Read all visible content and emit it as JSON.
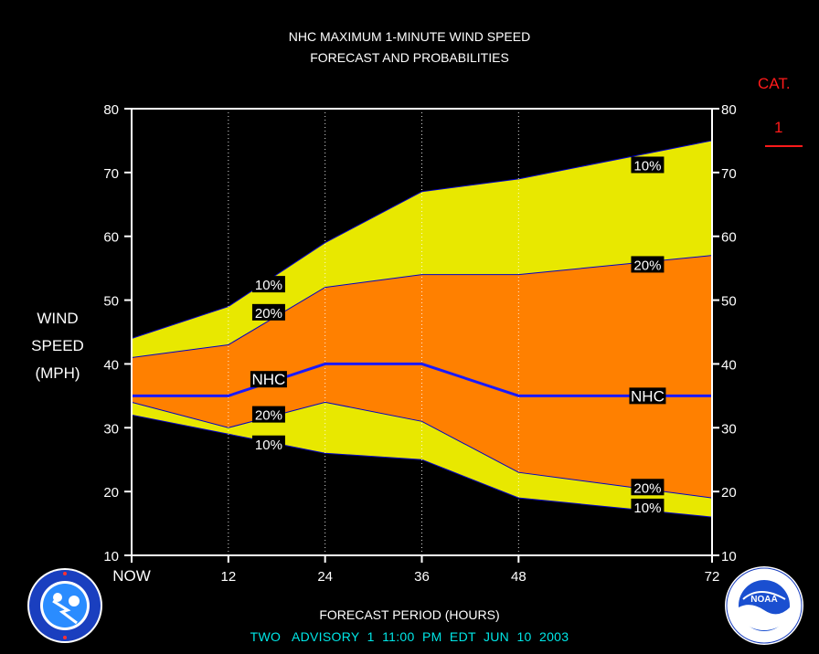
{
  "header": {
    "title_line1": "NHC MAXIMUM 1-MINUTE WIND SPEED",
    "title_line2": "FORECAST AND PROBABILITIES"
  },
  "category": {
    "label": "CAT.",
    "value": "1"
  },
  "y_axis_title": [
    "WIND",
    "SPEED",
    "(MPH)"
  ],
  "x_axis_title": "FORECAST PERIOD (HOURS)",
  "advisory": "TWO   ADVISORY  1  11:00  PM  EDT  JUN  10  2003",
  "logos": {
    "left": "nws-logo",
    "right": "noaa-logo"
  },
  "colors": {
    "background": "#000000",
    "outer_band": "#e8e800",
    "inner_band": "#ff8000",
    "nhc_line": "#1a1aff",
    "category_red": "#ff1a1a",
    "advisory_cyan": "#00e6e6"
  },
  "chart_data": {
    "type": "area",
    "x": [
      0,
      12,
      24,
      36,
      48,
      72
    ],
    "x_tick_labels": [
      "NOW",
      "12",
      "24",
      "36",
      "48",
      "72"
    ],
    "ylim": [
      10,
      80
    ],
    "y_ticks": [
      10,
      20,
      30,
      40,
      50,
      60,
      70,
      80
    ],
    "xlim": [
      0,
      72
    ],
    "grid": "vertical dotted at forecast hours",
    "series": [
      {
        "name": "10%",
        "band": "upper",
        "values": [
          44,
          49,
          59,
          67,
          69,
          75
        ]
      },
      {
        "name": "20%",
        "band": "upper",
        "values": [
          41,
          43,
          52,
          54,
          54,
          57
        ]
      },
      {
        "name": "NHC",
        "values": [
          35,
          35,
          40,
          40,
          35,
          35
        ]
      },
      {
        "name": "20%",
        "band": "lower",
        "values": [
          34,
          30,
          34,
          31,
          23,
          19
        ]
      },
      {
        "name": "10%",
        "band": "lower",
        "values": [
          32,
          29,
          26,
          25,
          19,
          16
        ]
      }
    ],
    "labels": [
      {
        "text": "10%",
        "x": 17,
        "y": 52.5
      },
      {
        "text": "20%",
        "x": 17,
        "y": 48.1
      },
      {
        "text": "NHC",
        "x": 17,
        "y": 37.6
      },
      {
        "text": "20%",
        "x": 17,
        "y": 32.1
      },
      {
        "text": "10%",
        "x": 17,
        "y": 27.5
      },
      {
        "text": "10%",
        "x": 64,
        "y": 71.2
      },
      {
        "text": "20%",
        "x": 64,
        "y": 55.6
      },
      {
        "text": "NHC",
        "x": 64,
        "y": 35.0
      },
      {
        "text": "20%",
        "x": 64,
        "y": 20.7
      },
      {
        "text": "10%",
        "x": 64,
        "y": 17.6
      }
    ]
  }
}
